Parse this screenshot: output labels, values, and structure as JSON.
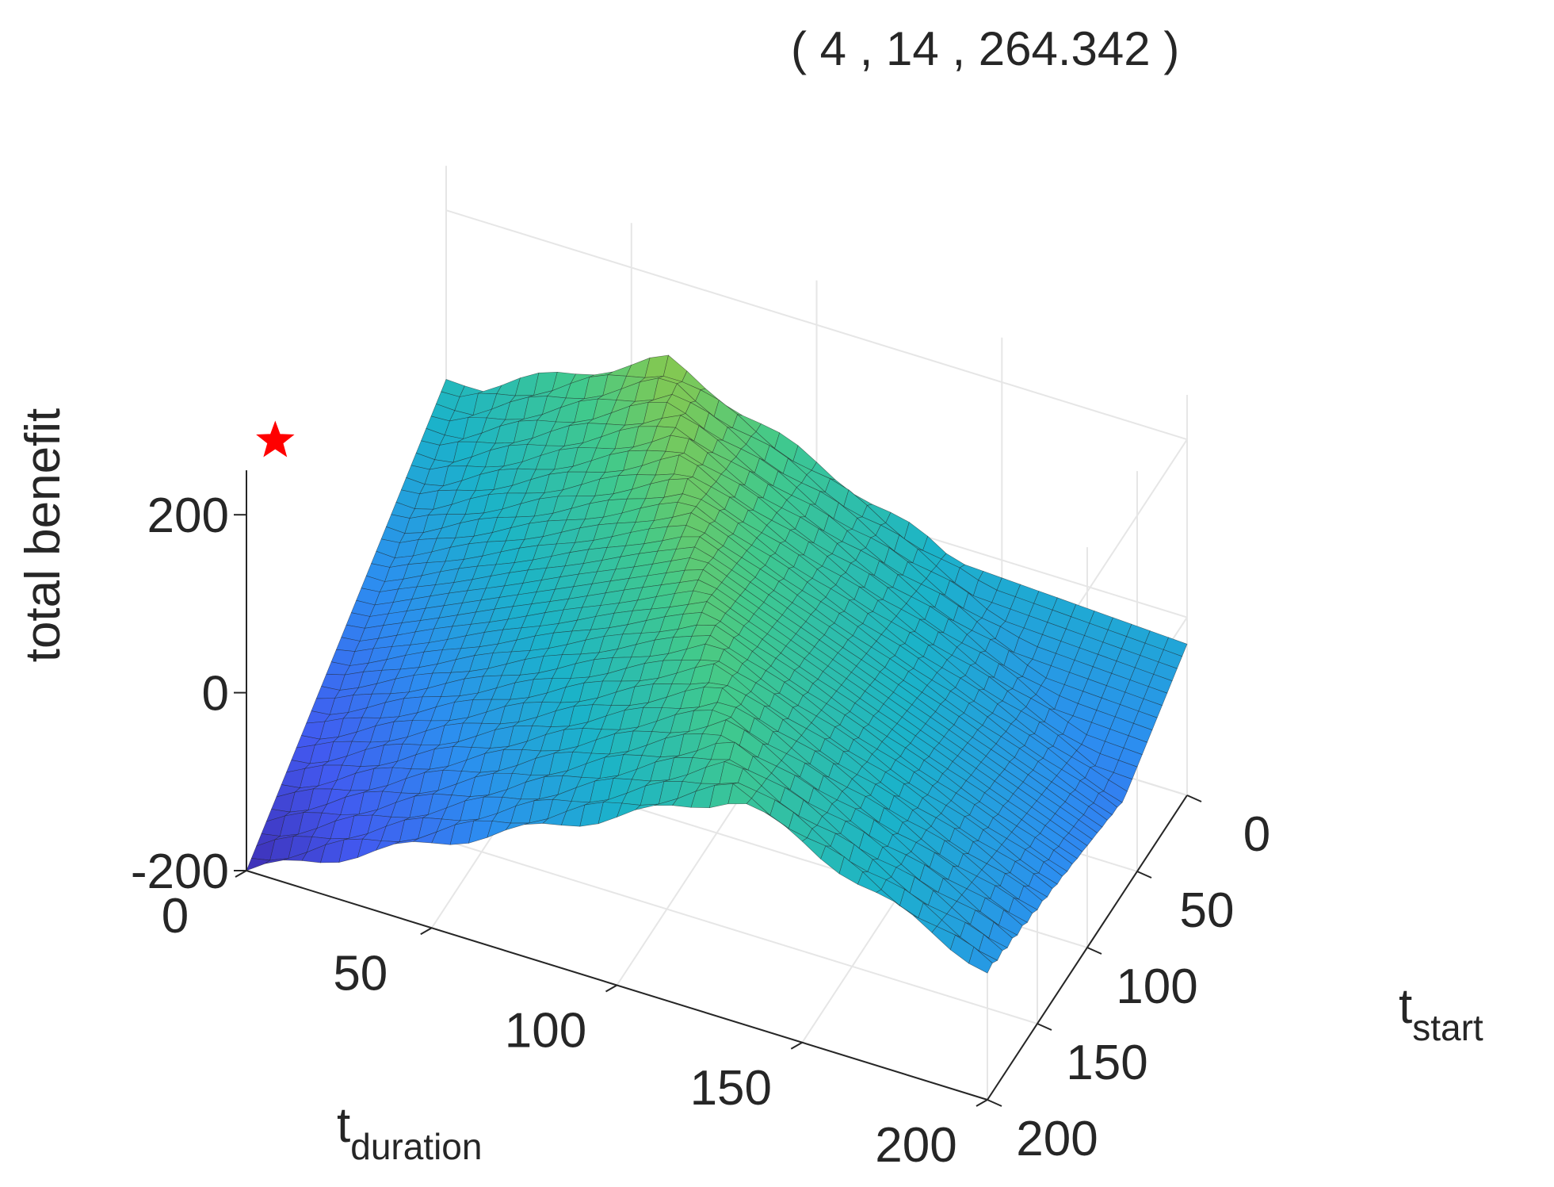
{
  "chart_data": {
    "type": "surface",
    "xlabel": "t",
    "xlabel_sub": "duration",
    "ylabel": "t",
    "ylabel_sub": "start",
    "zlabel": "total benefit",
    "xlim": [
      0,
      200
    ],
    "ylim": [
      0,
      200
    ],
    "zlim": [
      -200,
      200
    ],
    "xticks": [
      "0",
      "50",
      "100",
      "150",
      "200"
    ],
    "yticks": [
      "0",
      "50",
      "100",
      "150",
      "200"
    ],
    "zticks": [
      "-200",
      "0",
      "200"
    ],
    "colormap": [
      "#3e26a8",
      "#4259f0",
      "#2c8ef0",
      "#1bb3c9",
      "#41c98c",
      "#a7c832",
      "#f0bf36",
      "#f8e21f"
    ],
    "mesh_color": "#1a1a1a",
    "grid": true,
    "max_point": {
      "x": 4,
      "y": 14,
      "z": 264.342,
      "marker_color": "#ff0000"
    },
    "annotation": "( 4 , 14 , 264.342 )"
  }
}
